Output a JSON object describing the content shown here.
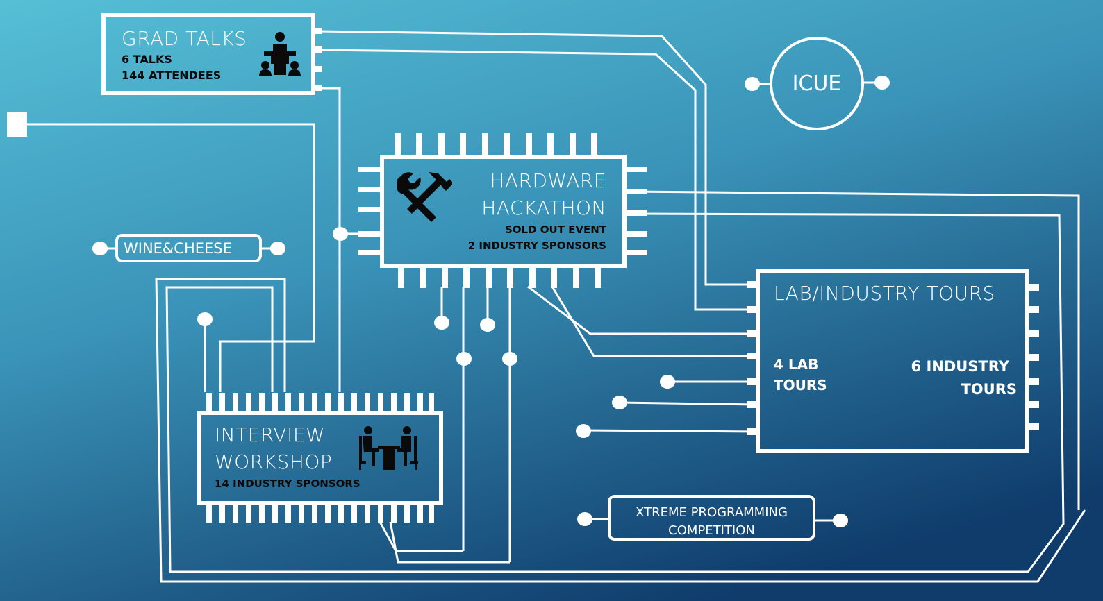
{
  "colors": {
    "background_top": "#5bc3d8",
    "background_bottom": "#0f3e6e",
    "trace": "#ffffff",
    "text_dark": "#0a0a0a"
  },
  "grad_talks": {
    "title": "GRAD TALKS",
    "line1": "6 TALKS",
    "line2": "144 ATTENDEES",
    "icon": "lecturer-icon"
  },
  "hackathon": {
    "title_line1": "HARDWARE",
    "title_line2": "HACKATHON",
    "line1": "SOLD OUT EVENT",
    "line2": "2 INDUSTRY SPONSORS",
    "icon": "tools-icon"
  },
  "icue": {
    "label": "ICUE"
  },
  "wine_cheese": {
    "label": "WINE&CHEESE"
  },
  "tours": {
    "title": "LAB/INDUSTRY TOURS",
    "lab_line1": "4 LAB",
    "lab_line2": "TOURS",
    "industry_line1": "6 INDUSTRY",
    "industry_line2": "TOURS"
  },
  "interview": {
    "title_line1": "INTERVIEW",
    "title_line2": "WORKSHOP",
    "line1": "14 INDUSTRY SPONSORS",
    "icon": "interview-icon"
  },
  "xtreme": {
    "line1": "XTREME PROGRAMMING",
    "line2": "COMPETITION"
  }
}
